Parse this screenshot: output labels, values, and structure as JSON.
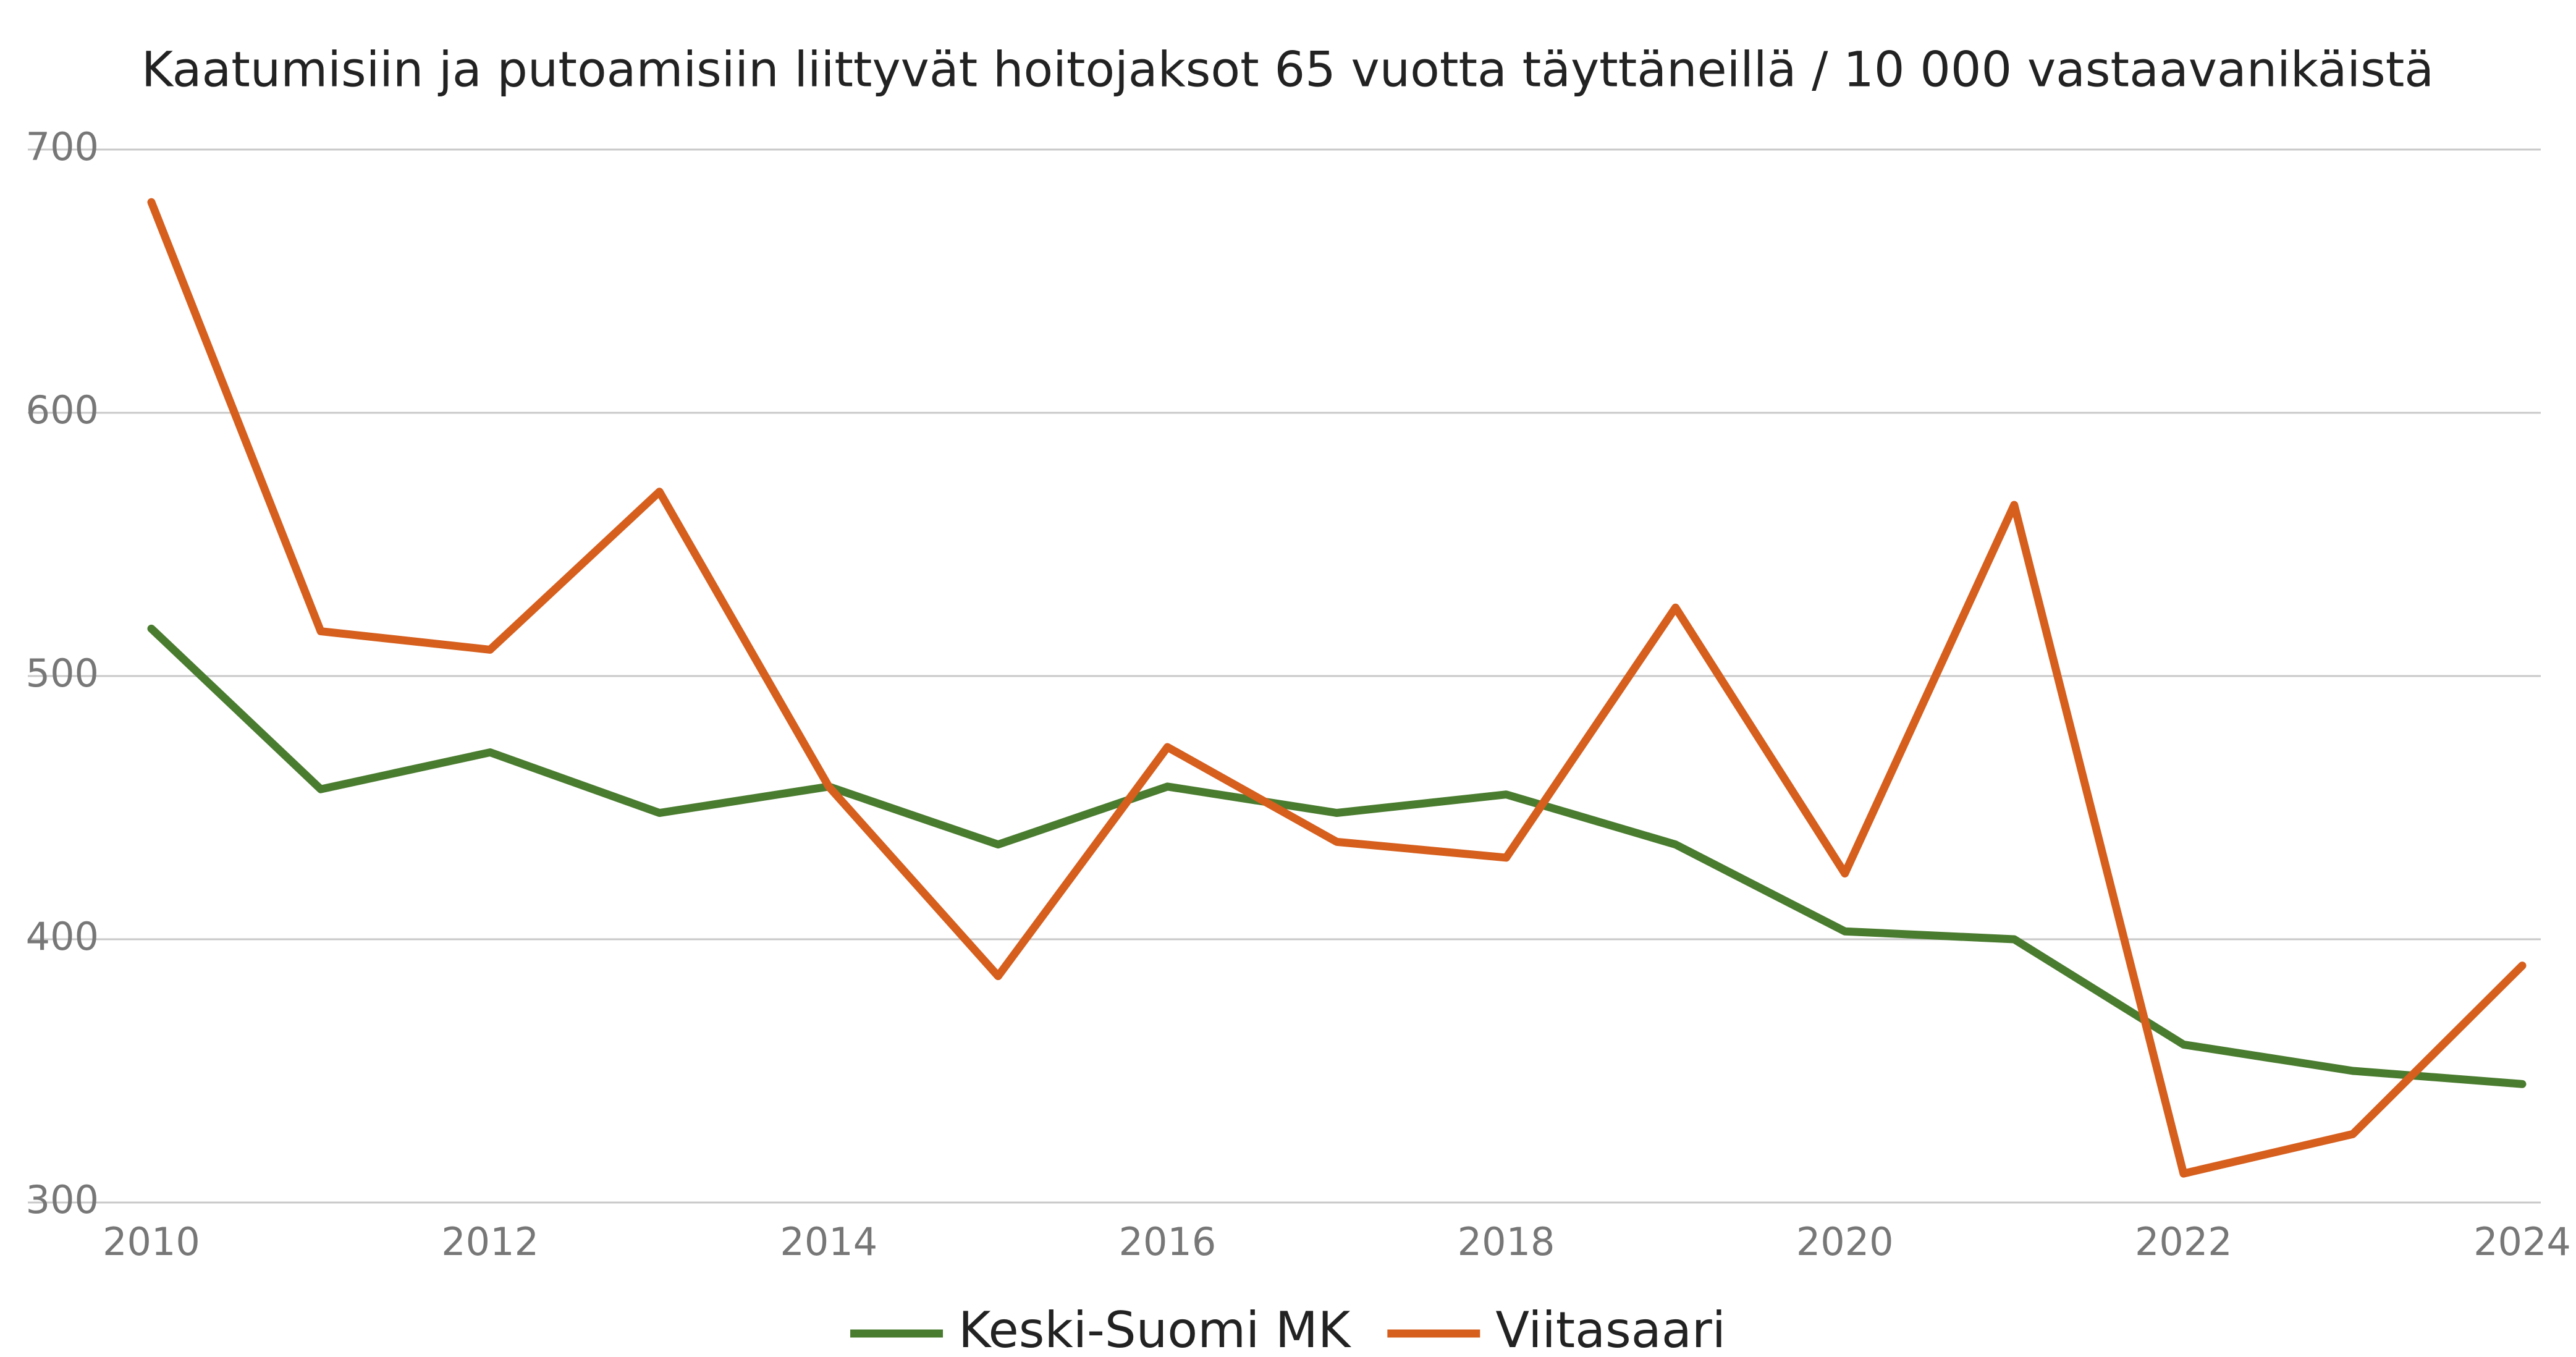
{
  "chart_data": {
    "type": "line",
    "title": "Kaatumisiin ja putoamisiin liittyvät hoitojaksot 65 vuotta täyttäneillä / 10 000 vastaavanikäistä",
    "x": [
      2010,
      2011,
      2012,
      2013,
      2014,
      2015,
      2016,
      2017,
      2018,
      2019,
      2020,
      2021,
      2022,
      2023,
      2024
    ],
    "series": [
      {
        "name": "Keski-Suomi MK",
        "color": "#4a7c2f",
        "values": [
          518,
          457,
          471,
          448,
          458,
          436,
          458,
          448,
          455,
          436,
          403,
          400,
          360,
          350,
          345
        ]
      },
      {
        "name": "Viitasaari",
        "color": "#d65f1e",
        "values": [
          680,
          517,
          510,
          570,
          458,
          386,
          473,
          437,
          431,
          526,
          425,
          565,
          311,
          326,
          390
        ]
      }
    ],
    "xlim": [
      2010,
      2024
    ],
    "xticks": [
      2010,
      2012,
      2014,
      2016,
      2018,
      2020,
      2022,
      2024
    ],
    "ylim": [
      300,
      700
    ],
    "yticks": [
      300,
      400,
      500,
      600,
      700
    ],
    "grid": true,
    "legend": "bottom"
  }
}
